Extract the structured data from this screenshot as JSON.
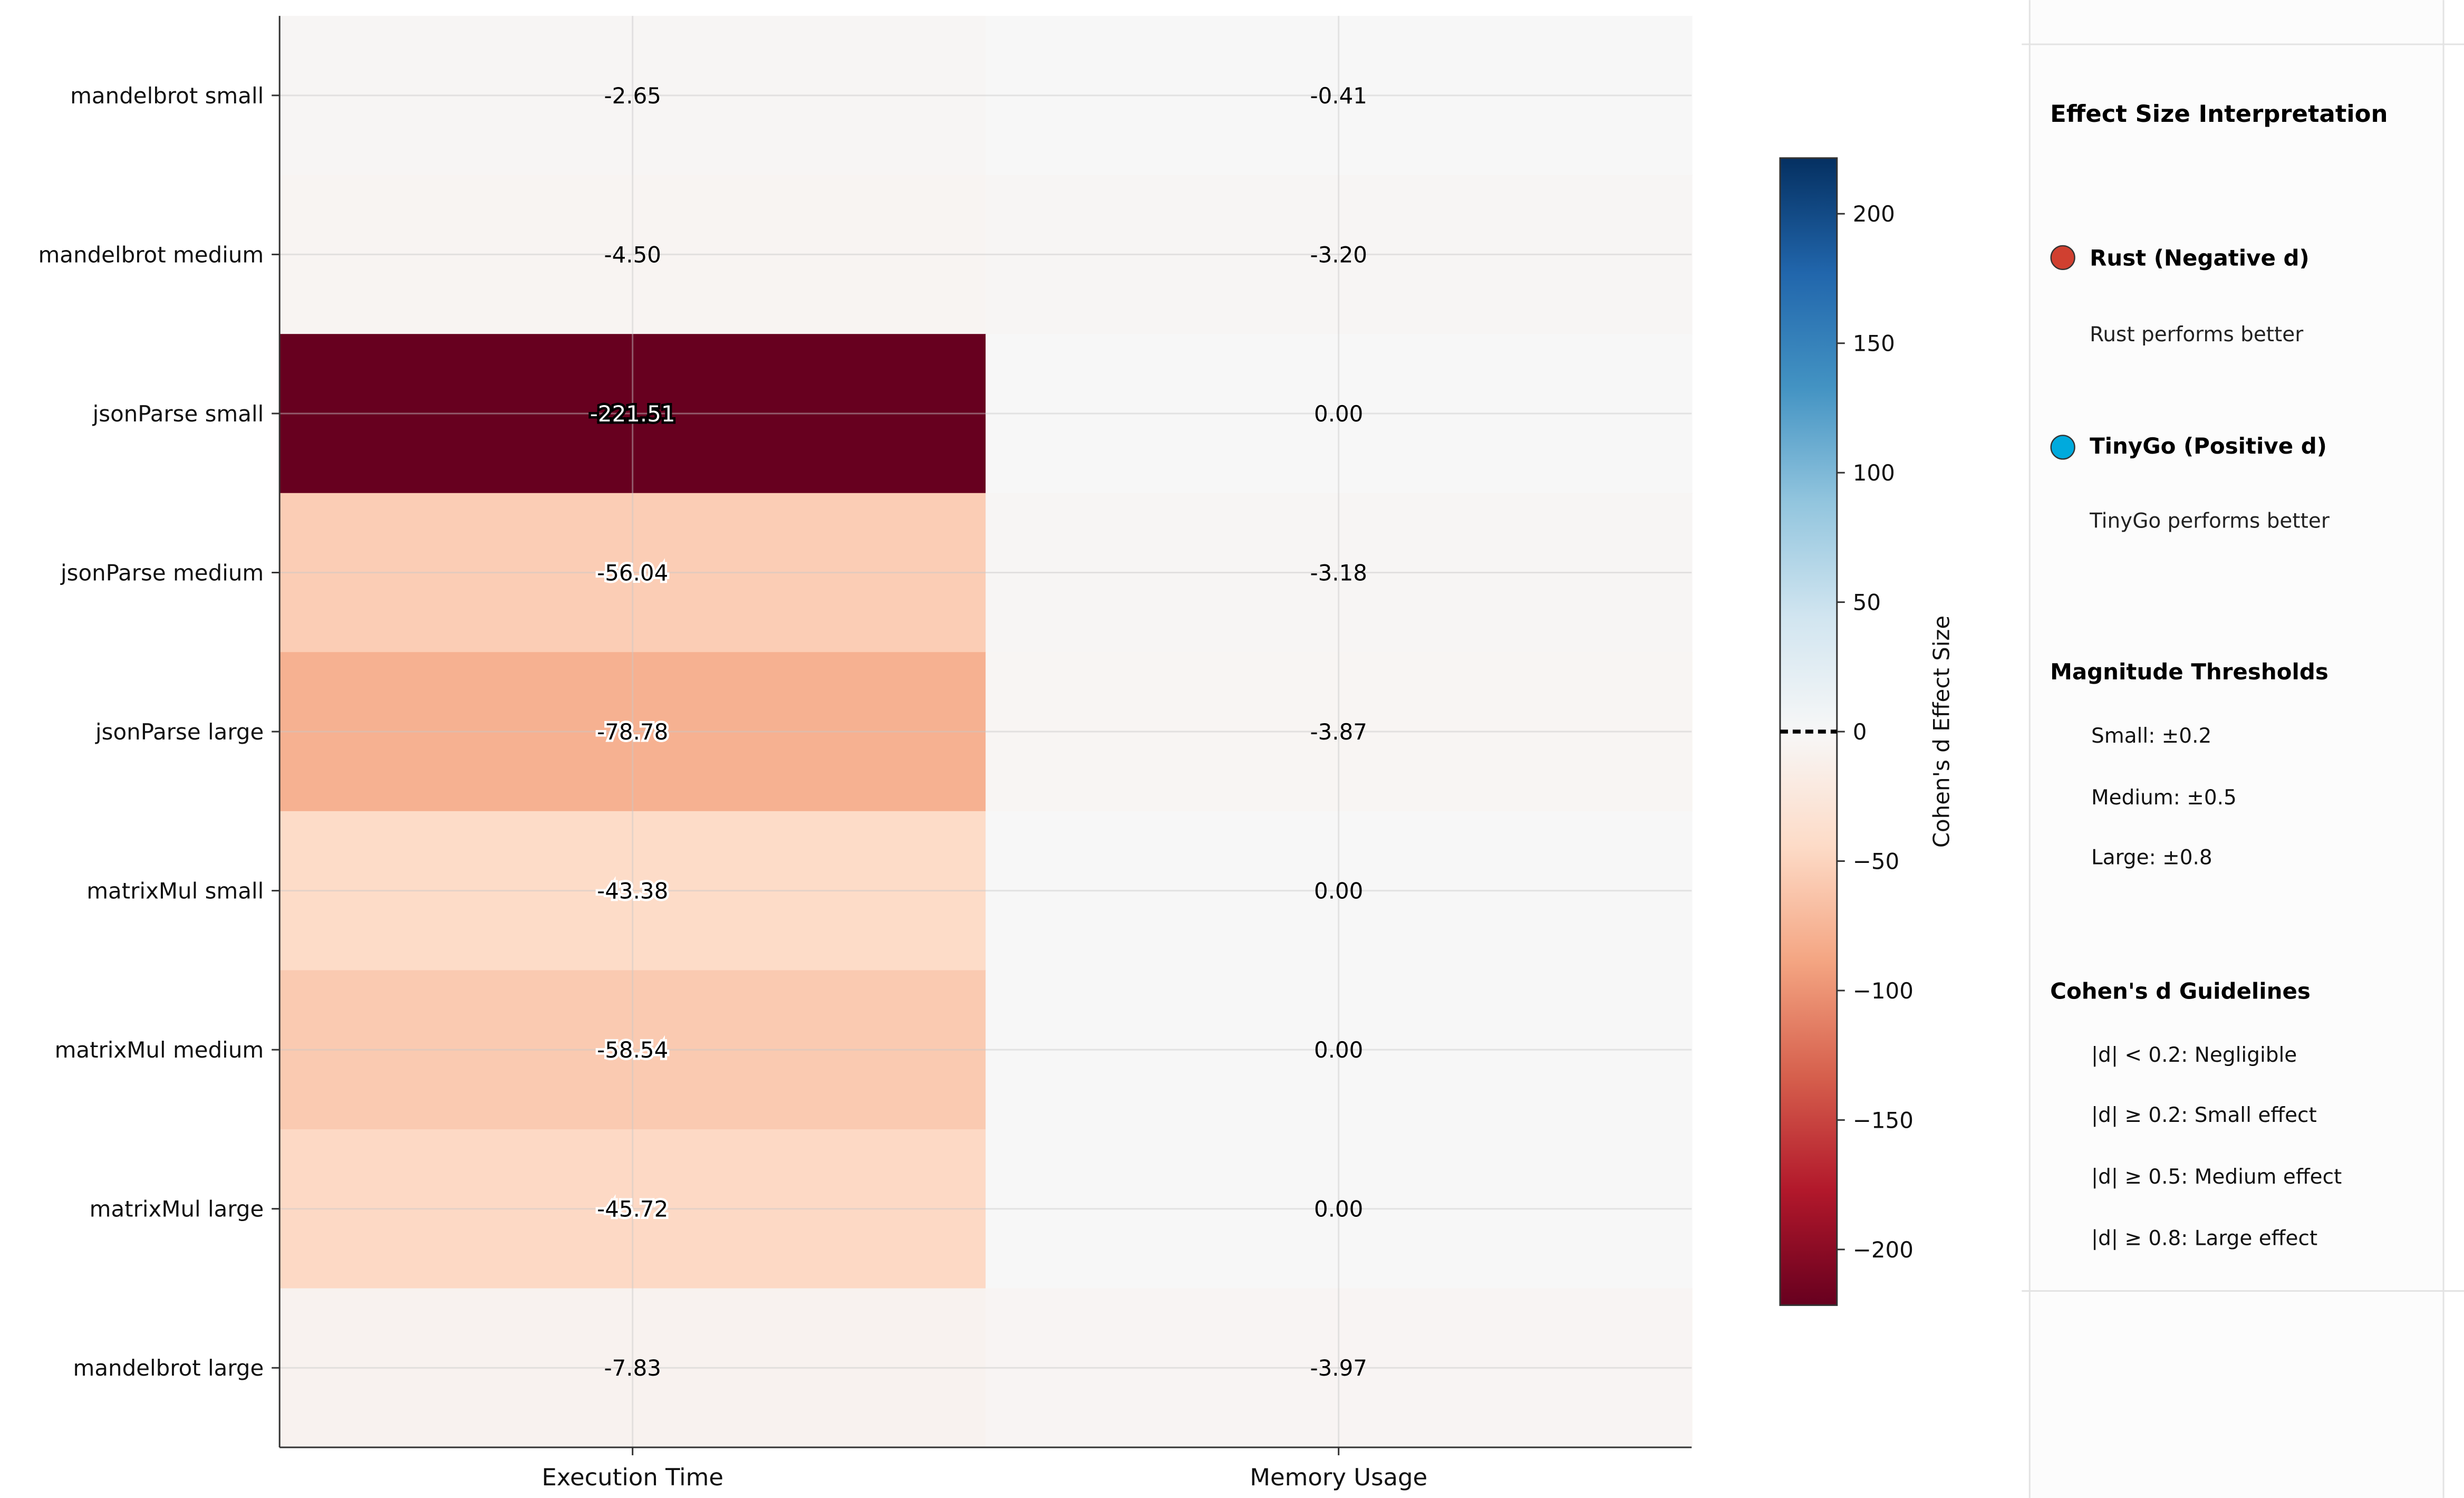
{
  "chart_data": {
    "type": "heatmap",
    "rows": [
      "mandelbrot small",
      "mandelbrot medium",
      "jsonParse small",
      "jsonParse medium",
      "jsonParse large",
      "matrixMul small",
      "matrixMul medium",
      "matrixMul large",
      "mandelbrot large"
    ],
    "columns": [
      "Execution Time",
      "Memory Usage"
    ],
    "values": [
      [
        -2.65,
        -0.41
      ],
      [
        -4.5,
        -3.2
      ],
      [
        -221.51,
        0.0
      ],
      [
        -56.04,
        -3.18
      ],
      [
        -78.78,
        -3.87
      ],
      [
        -43.38,
        0.0
      ],
      [
        -58.54,
        0.0
      ],
      [
        -45.72,
        0.0
      ],
      [
        -7.83,
        -3.97
      ]
    ],
    "colormap": "RdBu",
    "vmin": -221.51,
    "vmax": 221.51,
    "grid": true,
    "colorbar": {
      "label": "Cohen's d Effect Size",
      "ticks": [
        200,
        150,
        100,
        50,
        0,
        -50,
        -100,
        -150,
        -200
      ],
      "tick_labels": [
        "200",
        "150",
        "100",
        "50",
        "0",
        "−50",
        "−100",
        "−150",
        "−200"
      ],
      "zero_line": "dashed"
    }
  },
  "legend_panel": {
    "title": "Effect Size Interpretation",
    "entries": [
      {
        "label": "Rust (Negative d)",
        "desc": "Rust performs better",
        "color": "#d04030"
      },
      {
        "label": "TinyGo (Positive d)",
        "desc": "TinyGo performs better",
        "color": "#00aadd"
      }
    ],
    "magnitude_title": "Magnitude Thresholds",
    "magnitude_items": [
      "Small: ±0.2",
      "Medium: ±0.5",
      "Large: ±0.8"
    ],
    "guidelines_title": "Cohen's d Guidelines",
    "guidelines_items": [
      "|d| < 0.2: Negligible",
      "|d| ≥ 0.2: Small effect",
      "|d| ≥ 0.5: Medium effect",
      "|d| ≥ 0.8: Large effect"
    ]
  }
}
